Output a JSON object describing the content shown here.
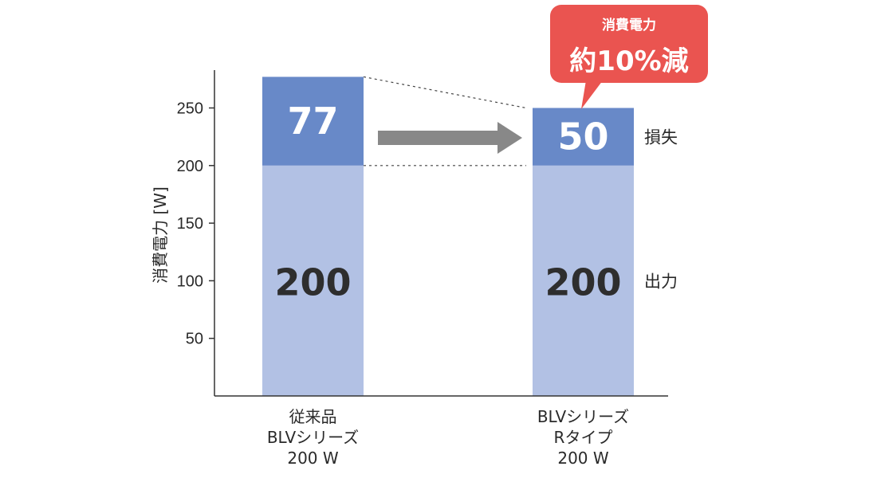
{
  "chart_data": {
    "type": "bar",
    "stacked": true,
    "ylabel": "消費電力 [W]",
    "ylim": [
      0,
      280
    ],
    "yticks": [
      50,
      100,
      150,
      200,
      250
    ],
    "categories": [
      [
        "従来品",
        "BLVシリーズ",
        "200 W"
      ],
      [
        "BLVシリーズ",
        "Rタイプ",
        "200 W"
      ]
    ],
    "series": [
      {
        "name": "出力",
        "values": [
          200,
          200
        ]
      },
      {
        "name": "損失",
        "values": [
          77,
          50
        ]
      }
    ],
    "data_labels": {
      "output": [
        "200",
        "200"
      ],
      "loss": [
        "77",
        "50"
      ]
    },
    "segment_labels": {
      "loss": "損失",
      "output": "出力"
    },
    "callout": {
      "line1": "消費電力",
      "line2": "約10%減"
    },
    "colors": {
      "output": "#b2c1e4",
      "loss": "#6889c8",
      "arrow": "#888888",
      "callout": "#ea5450",
      "axis": "#333333"
    },
    "grid": false
  }
}
